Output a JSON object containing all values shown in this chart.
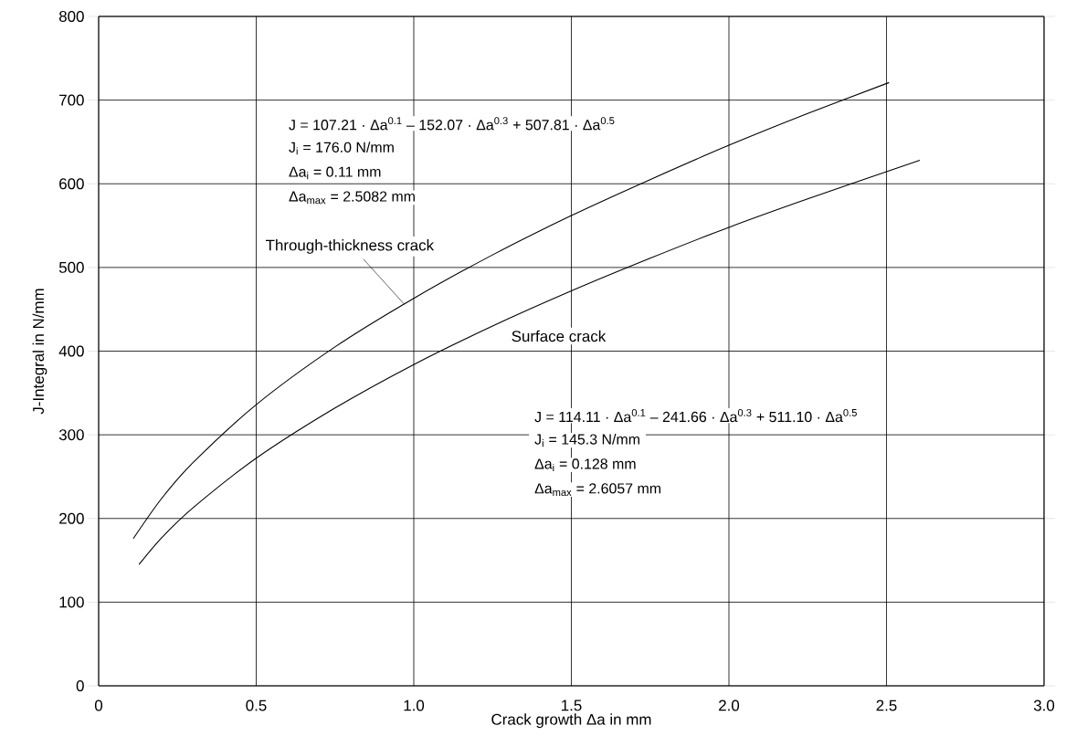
{
  "chart_data": {
    "type": "line",
    "xlabel": "Crack growth  Δa  in mm",
    "ylabel": "J-Integral  in N/mm",
    "xlim": [
      0,
      3
    ],
    "ylim": [
      0,
      800
    ],
    "xticks": [
      0,
      0.5,
      {
        "value": 1,
        "label": "1.0"
      },
      1.5,
      {
        "value": 2,
        "label": "2.0"
      },
      2.5,
      {
        "value": 3,
        "label": "3.0"
      }
    ],
    "yticks": [
      0,
      100,
      200,
      300,
      400,
      500,
      600,
      700,
      800
    ],
    "grid": true,
    "marker": "none",
    "line_style": "solid",
    "series": [
      {
        "name": "Through-thickness crack",
        "color": "#000000",
        "x": [
          0.11,
          0.2,
          0.3,
          0.5,
          0.75,
          1.0,
          1.25,
          1.5,
          1.75,
          2.0,
          2.25,
          2.5082
        ],
        "values": [
          176,
          224,
          267,
          336,
          405,
          463,
          515,
          562,
          605,
          646,
          684,
          721
        ]
      },
      {
        "name": "Surface crack",
        "color": "#000000",
        "x": [
          0.128,
          0.2,
          0.3,
          0.5,
          0.75,
          1.0,
          1.25,
          1.5,
          1.75,
          2.0,
          2.25,
          2.6057
        ],
        "values": [
          145,
          177,
          213,
          272,
          332,
          384,
          430,
          472,
          511,
          548,
          582,
          628
        ]
      }
    ],
    "annotations": [
      "J = 107.21 · Δa$^{0.1}$ – 152.07 · Δa$^{0.3}$ + 507.81 · Δa$^{0.5}$",
      "J$_{i}$ = 176.0 N/mm",
      "Δa$_{i}$ = 0.11 mm",
      "Δa$_{max}$ = 2.5082 mm",
      "J = 114.11 · Δa$^{0.1}$ – 241.66 · Δa$^{0.3}$ + 511.10 · Δa$^{0.5}$",
      "J$_{i}$ = 145.3 N/mm",
      "Δa$_{i}$ = 0.128 mm",
      "Δa$_{max}$ = 2.6057 mm"
    ]
  }
}
